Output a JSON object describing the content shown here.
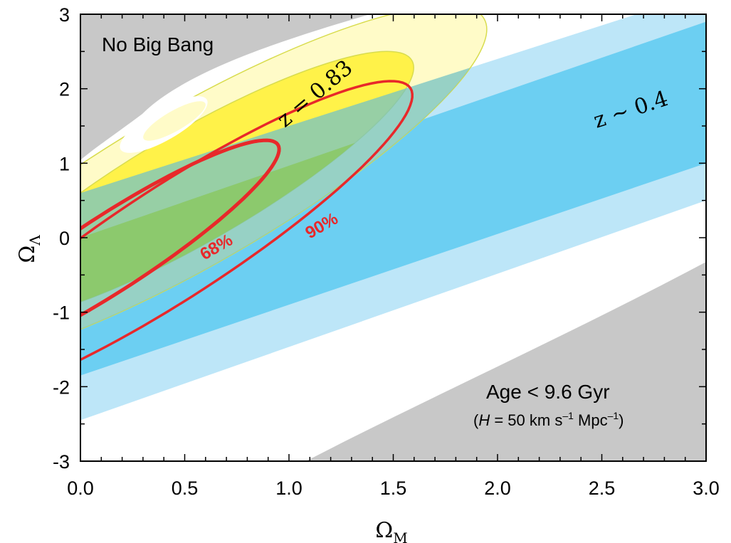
{
  "chart_data": {
    "type": "area",
    "xlabel": "Ω",
    "xlabel_sub": "M",
    "ylabel": "Ω",
    "ylabel_sub": "Λ",
    "xlim": [
      0.0,
      3.0
    ],
    "ylim": [
      -3,
      3
    ],
    "x_ticks": [
      "0.0",
      "0.5",
      "1.0",
      "1.5",
      "2.0",
      "2.5",
      "3.0"
    ],
    "y_ticks": [
      "3",
      "2",
      "1",
      "0",
      "-1",
      "-2",
      "-3"
    ],
    "grid": false,
    "regions": {
      "no_big_bang": {
        "label": "No Big Bang",
        "color": "#c8c8c8"
      },
      "age_limit": {
        "label": "Age < 9.6 Gyr",
        "note_prefix": "(",
        "note_H": "H",
        "note_rest": " = 50 km s",
        "note_exp1": "–1",
        "note_mid": " Mpc",
        "note_exp2": "–1",
        "note_suffix": ")",
        "color": "#c8c8c8"
      }
    },
    "series": [
      {
        "name": "z ~ 0.4",
        "kind": "band",
        "colors": {
          "inner": "#6ccff2",
          "outer": "#bde6f8"
        },
        "inner": {
          "lower_at_x0": -1.85,
          "upper_at_x0": 0.0,
          "lower_at_x3": 1.0,
          "upper_at_x3": 2.9
        },
        "outer": {
          "lower_at_x0": -2.45,
          "upper_at_x0": 0.6,
          "lower_at_x3": 0.5,
          "upper_at_x3": 3.3
        }
      },
      {
        "name": "z = 0.83",
        "kind": "ellipse",
        "colors": {
          "inner": "#fff249",
          "outer": "#fffbc8",
          "edge": "#d8dc4e"
        },
        "center": [
          0.55,
          0.7
        ],
        "angle_deg": 30,
        "axes_inner": [
          1.2,
          0.75
        ],
        "axes_outer": [
          1.6,
          1.05
        ]
      }
    ],
    "combined": {
      "overlap_inner_color": "#8ac863",
      "overlap_outer_color": "#74c3c4"
    },
    "contours": [
      {
        "label": "68%",
        "color": "#e8282a",
        "center": [
          0.15,
          -0.2
        ],
        "angle_deg": 33,
        "axes": [
          0.95,
          0.5
        ]
      },
      {
        "label": "90%",
        "color": "#e8282a",
        "center": [
          0.45,
          -0.05
        ],
        "angle_deg": 33,
        "axes": [
          1.35,
          0.75
        ]
      }
    ]
  }
}
